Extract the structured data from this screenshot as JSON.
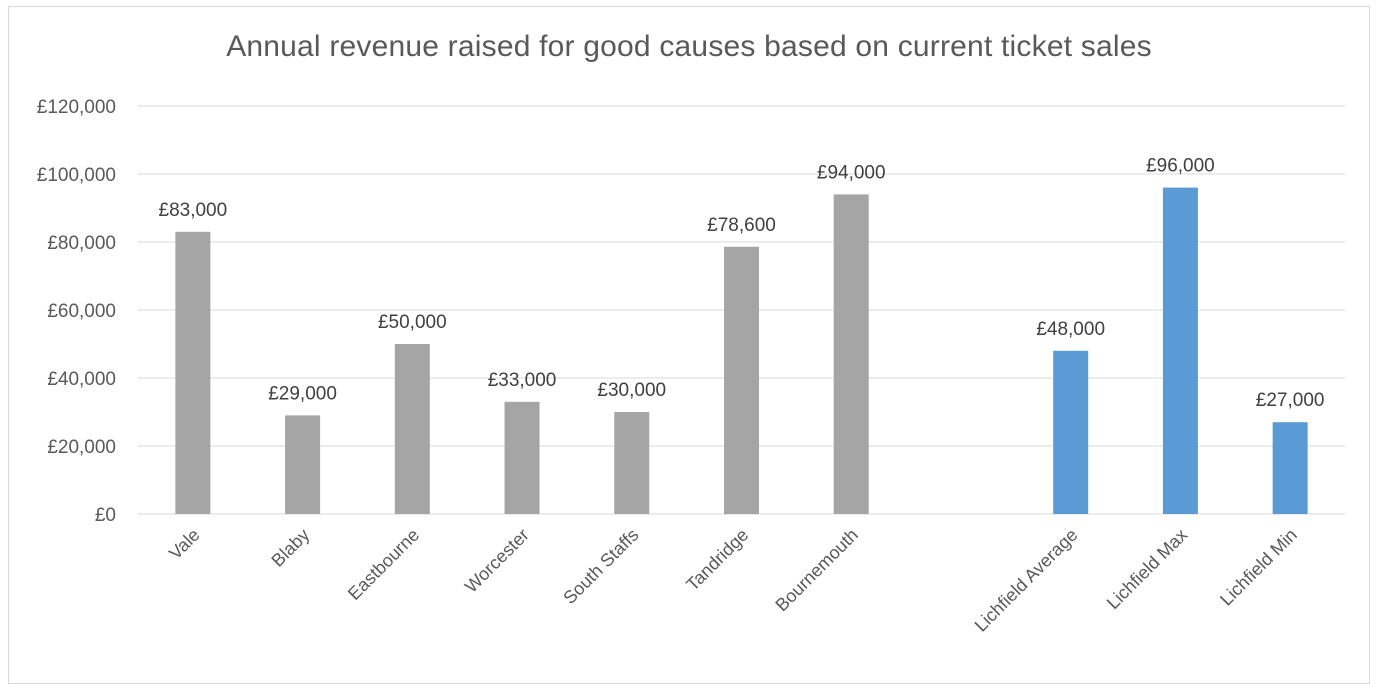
{
  "chart_data": {
    "type": "bar",
    "title": "Annual revenue raised for good causes based on current ticket sales",
    "xlabel": "",
    "ylabel": "",
    "ylim": [
      0,
      120000
    ],
    "yticks": [
      0,
      20000,
      40000,
      60000,
      80000,
      100000,
      120000
    ],
    "ytick_labels": [
      "£0",
      "£20,000",
      "£40,000",
      "£60,000",
      "£80,000",
      "£100,000",
      "£120,000"
    ],
    "grid": true,
    "legend": "none",
    "categories": [
      "Vale",
      "Blaby",
      "Eastbourne",
      "Worcester",
      "South Staffs",
      "Tandridge",
      "Bournemouth",
      "",
      "Lichfield Average",
      "Lichfield Max",
      "Lichfield Min"
    ],
    "values": [
      83000,
      29000,
      50000,
      33000,
      30000,
      78600,
      94000,
      null,
      48000,
      96000,
      27000
    ],
    "data_labels": [
      "£83,000",
      "£29,000",
      "£50,000",
      "£33,000",
      "£30,000",
      "£78,600",
      "£94,000",
      "",
      "£48,000",
      "£96,000",
      "£27,000"
    ],
    "bar_colors": [
      "#a5a5a5",
      "#a5a5a5",
      "#a5a5a5",
      "#a5a5a5",
      "#a5a5a5",
      "#a5a5a5",
      "#a5a5a5",
      "#a5a5a5",
      "#5b9bd5",
      "#5b9bd5",
      "#5b9bd5"
    ],
    "gridline_color": "#d9d9d9"
  }
}
